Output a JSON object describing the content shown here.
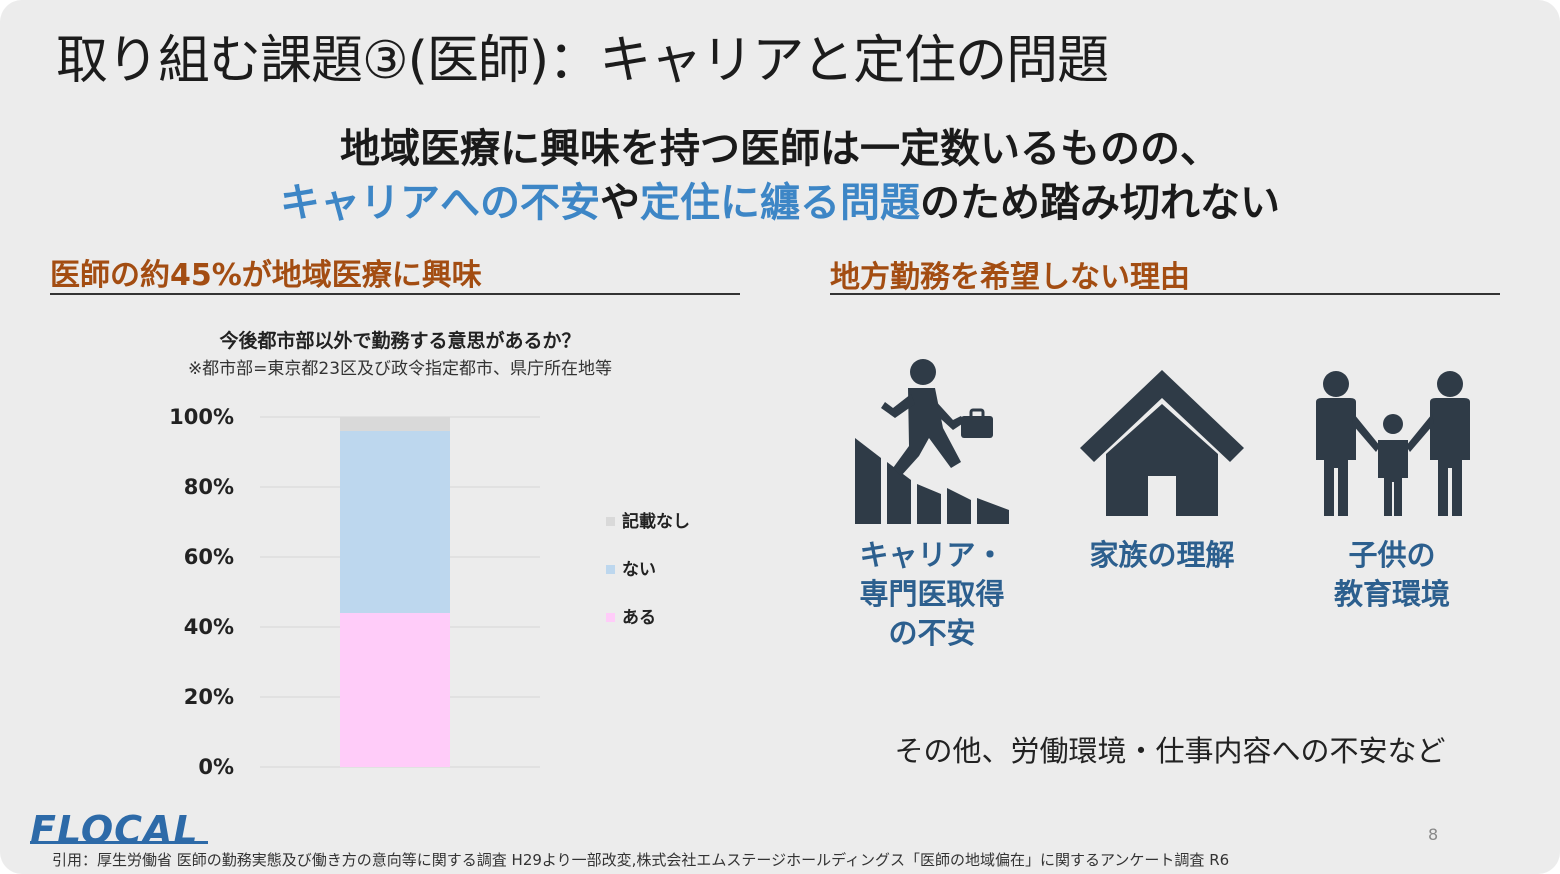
{
  "slide": {
    "title": "取り組む課題③(医師)：キャリアと定住の問題",
    "headline": {
      "line1": "地域医療に興味を持つ医師は一定数いるものの、",
      "line2": [
        {
          "text": "キャリアへの不安",
          "highlight": true
        },
        {
          "text": "や",
          "highlight": false
        },
        {
          "text": "定住に纏る問題",
          "highlight": true
        },
        {
          "text": "のため踏み切れない",
          "highlight": false
        }
      ]
    },
    "left_section_title": "医師の約45%が地域医療に興味",
    "right_section_title": "地方勤務を希望しない理由",
    "reasons": [
      {
        "icon": "career-stairs-icon",
        "label_lines": [
          "キャリア・",
          "専門医取得",
          "の不安"
        ]
      },
      {
        "icon": "house-icon",
        "label_lines": [
          "家族の理解"
        ]
      },
      {
        "icon": "family-icon",
        "label_lines": [
          "子供の",
          "教育環境"
        ]
      }
    ],
    "other_reasons": "その他、労働環境・仕事内容への不安など",
    "logo": "FLOCAL",
    "page_number": "8",
    "citation": "引用：厚生労働省 医師の勤務実態及び働き方の意向等に関する調査 H29より一部改変,株式会社エムステージホールディングス「医師の地域偏在」に関するアンケート調査 R6",
    "accent_blue": "#3d86c6",
    "section_color": "#a34d12",
    "icon_color": "#2f3b47"
  },
  "chart_data": {
    "type": "bar",
    "stacked": true,
    "title": "今後都市部以外で勤務する意思があるか？",
    "subtitle": "※都市部=東京都23区及び政令指定都市、県庁所在地等",
    "categories": [
      ""
    ],
    "series": [
      {
        "name": "ある",
        "values": [
          44
        ],
        "color": "#ffccf9"
      },
      {
        "name": "ない",
        "values": [
          52
        ],
        "color": "#bdd7ee"
      },
      {
        "name": "記載なし",
        "values": [
          4
        ],
        "color": "#d9d9d9"
      }
    ],
    "yticks": [
      "0%",
      "20%",
      "40%",
      "60%",
      "80%",
      "100%"
    ],
    "ylim": [
      0,
      100
    ],
    "grid": true,
    "legend": "right"
  }
}
